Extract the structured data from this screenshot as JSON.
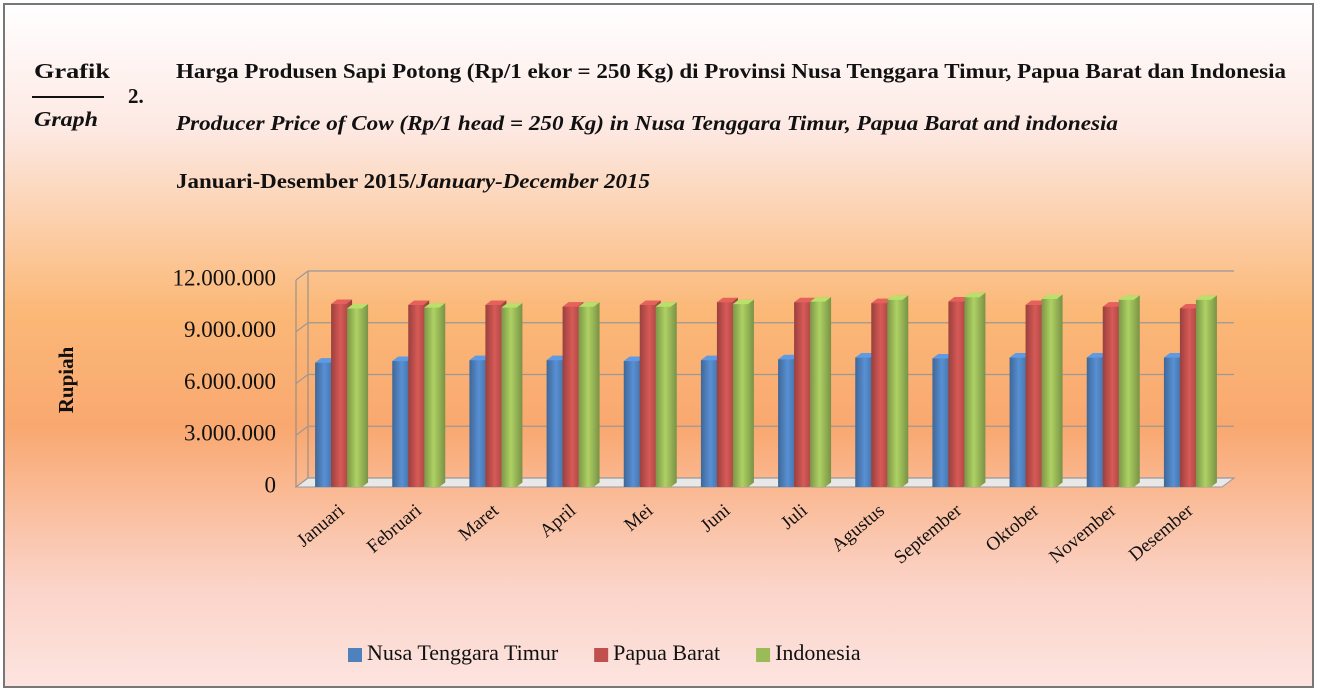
{
  "chart_data": {
    "type": "bar3d",
    "label_left_top": "Grafik",
    "label_left_bottom": "Graph",
    "number": "2.",
    "title": "Harga Produsen Sapi Potong (Rp/1 ekor = 250 Kg) di Provinsi Nusa Tenggara Timur, Papua Barat dan Indonesia",
    "subtitle": "Producer Price of Cow (Rp/1 head = 250 Kg) in Nusa Tenggara Timur, Papua Barat and indonesia",
    "period": "Januari-Desember 2015/",
    "period_en": "January-December 2015",
    "ylabel": "Rupiah",
    "categories": [
      "Januari",
      "Februari",
      "Maret",
      "April",
      "Mei",
      "Juni",
      "Juli",
      "Agustus",
      "September",
      "Oktober",
      "November",
      "Desember"
    ],
    "series": [
      {
        "name": "Nusa Tenggara Timur",
        "color": "#4f81bd",
        "values": [
          7200000,
          7300000,
          7350000,
          7350000,
          7300000,
          7350000,
          7400000,
          7500000,
          7450000,
          7500000,
          7500000,
          7500000
        ]
      },
      {
        "name": "Papua Barat",
        "color": "#c0504d",
        "values": [
          10600000,
          10550000,
          10550000,
          10450000,
          10550000,
          10700000,
          10700000,
          10650000,
          10750000,
          10550000,
          10450000,
          10350000
        ]
      },
      {
        "name": "Indonesia",
        "color": "#9bbb59",
        "values": [
          10350000,
          10400000,
          10400000,
          10450000,
          10450000,
          10600000,
          10750000,
          10850000,
          11000000,
          10900000,
          10850000,
          10850000
        ]
      }
    ],
    "ylim": [
      0,
      12000000
    ],
    "yticks": [
      0,
      {
        "value": 3000000,
        "label": "3.000.000"
      },
      {
        "value": 6000000,
        "label": "6.000.000"
      },
      {
        "value": 9000000,
        "label": "9.000.000"
      },
      {
        "value": 12000000,
        "label": "12.000.000"
      }
    ],
    "grid": true,
    "legend": "bottom"
  }
}
